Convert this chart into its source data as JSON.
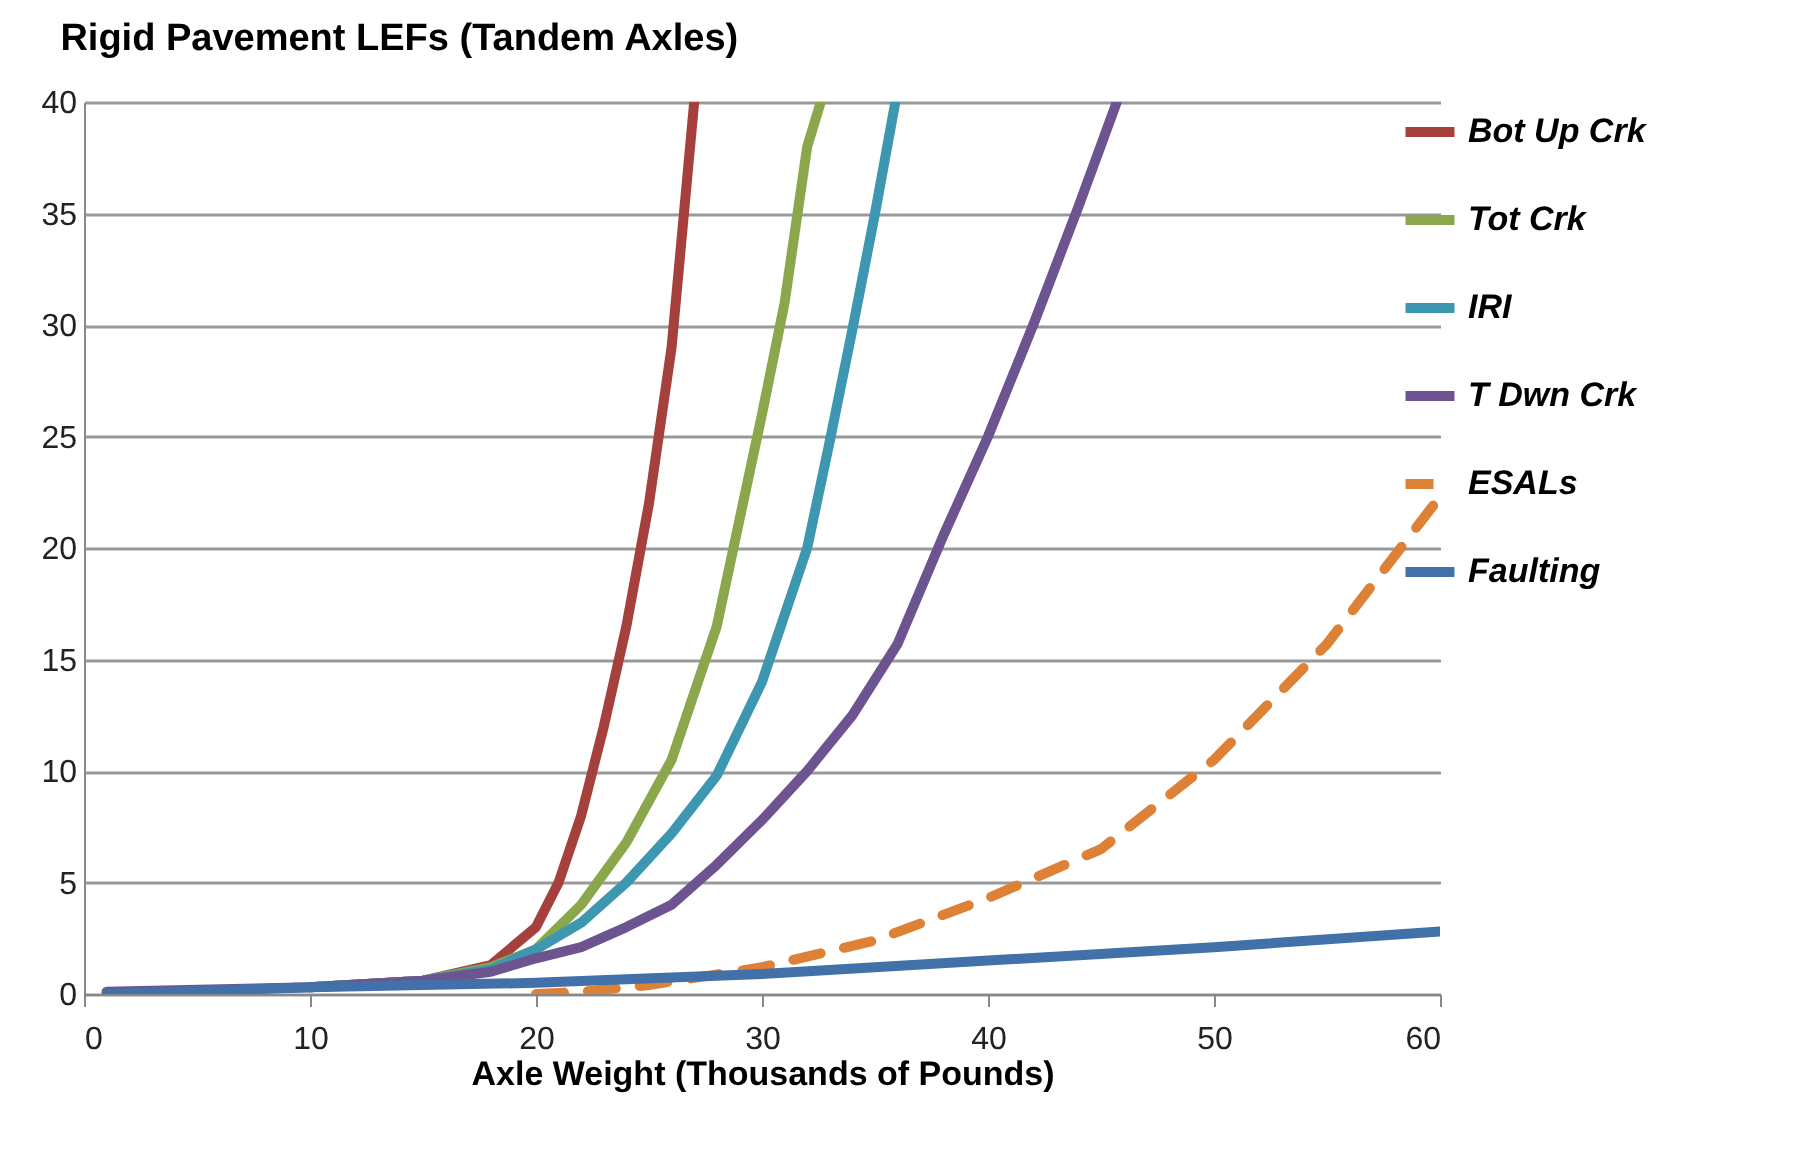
{
  "chart_data": {
    "type": "line",
    "title": "Rigid Pavement  LEFs (Tandem Axles)",
    "xlabel": "Axle Weight (Thousands of Pounds)",
    "xlim": [
      0,
      60
    ],
    "xticks": [
      0,
      10,
      20,
      30,
      40,
      50,
      60
    ],
    "ylim": [
      0,
      40
    ],
    "yticks": [
      0,
      5,
      10,
      15,
      20,
      25,
      30,
      35,
      40
    ],
    "grid": "y",
    "legend": "right",
    "line_style": "solid",
    "marker": "none",
    "series": [
      {
        "name": "Bot Up Crk",
        "color": "#a5403d",
        "x": [
          10,
          15,
          18,
          20,
          21,
          22,
          23,
          24,
          25,
          26,
          27
        ],
        "values": [
          0.3,
          0.6,
          1.3,
          3,
          5,
          8,
          12,
          16.5,
          22,
          29,
          40
        ]
      },
      {
        "name": "Tot Crk",
        "color": "#8aa84b",
        "x": [
          10,
          15,
          18,
          20,
          22,
          24,
          26,
          28,
          30,
          31,
          32,
          32.6
        ],
        "values": [
          0.3,
          0.6,
          1.2,
          2,
          4,
          6.8,
          10.5,
          16.5,
          26,
          31,
          38,
          40
        ]
      },
      {
        "name": "IRI",
        "color": "#3e97b0",
        "x": [
          10,
          15,
          18,
          20,
          22,
          24,
          26,
          28,
          30,
          32,
          33,
          34,
          35,
          35.9
        ],
        "values": [
          0.3,
          0.6,
          1.1,
          2,
          3.2,
          5,
          7.2,
          9.8,
          14,
          20,
          24.8,
          29.8,
          35,
          40
        ]
      },
      {
        "name": "T Dwn Crk",
        "color": "#6d5490",
        "x": [
          1,
          10,
          15,
          18,
          20,
          22,
          24,
          26,
          28,
          30,
          32,
          34,
          36,
          38,
          40,
          42,
          44,
          45.7
        ],
        "values": [
          0.1,
          0.3,
          0.6,
          1,
          1.6,
          2.1,
          3,
          4,
          5.8,
          7.8,
          10,
          12.5,
          15.7,
          20.5,
          25,
          30,
          35.3,
          40
        ]
      },
      {
        "name": "ESALs",
        "color": "#dd8136",
        "line_style": "dashed",
        "x": [
          20,
          22,
          25,
          30,
          35,
          40,
          45,
          50,
          55,
          60
        ],
        "values": [
          0,
          0.1,
          0.4,
          1.2,
          2.4,
          4.3,
          6.5,
          10.5,
          15.7,
          22.3
        ]
      },
      {
        "name": "Faulting",
        "color": "#4270a8",
        "x": [
          1,
          10,
          20,
          30,
          40,
          50,
          60
        ],
        "values": [
          0,
          0.3,
          0.5,
          0.9,
          1.5,
          2.1,
          2.8
        ]
      }
    ]
  }
}
